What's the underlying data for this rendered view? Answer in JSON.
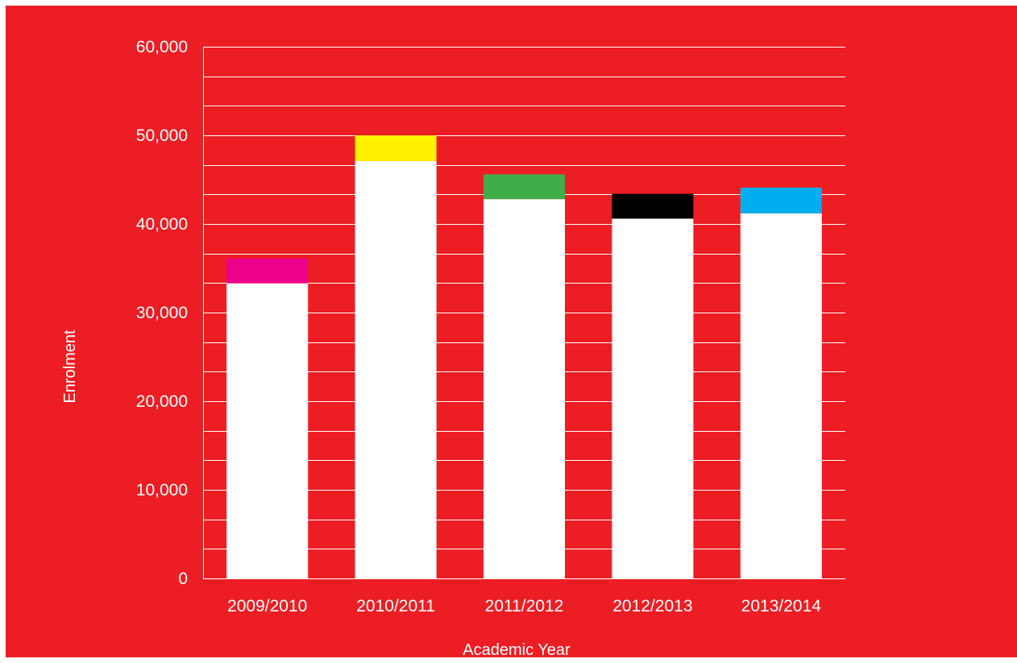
{
  "chart_data": {
    "type": "bar",
    "stacked": true,
    "title": "",
    "xlabel": "Academic Year",
    "ylabel": "Enrolment",
    "ylim": [
      0,
      60000
    ],
    "yticks": [
      0,
      10000,
      20000,
      30000,
      40000,
      50000,
      60000
    ],
    "ytick_labels": [
      "0",
      "10,000",
      "20,000",
      "30,000",
      "40,000",
      "50,000",
      "60,000"
    ],
    "minor_gridlines": true,
    "grid": true,
    "legend": "none",
    "categories": [
      "2009/2010",
      "2010/2011",
      "2011/2012",
      "2012/2013",
      "2013/2014"
    ],
    "series": [
      {
        "values": [
          33300,
          47100,
          42800,
          40600,
          41200
        ],
        "color": "#ffffff"
      },
      {
        "values": [
          2800,
          2900,
          2800,
          2800,
          2900
        ],
        "colors": [
          "#ec008c",
          "#fff200",
          "#3fae49",
          "#000000",
          "#00aeef"
        ]
      }
    ],
    "totals": [
      36100,
      50000,
      45600,
      43400,
      44100
    ]
  },
  "colors": {
    "background": "#ed1d24",
    "bar_base": "#ffffff",
    "gridline": "#ffffff",
    "text": "#ffffff"
  }
}
